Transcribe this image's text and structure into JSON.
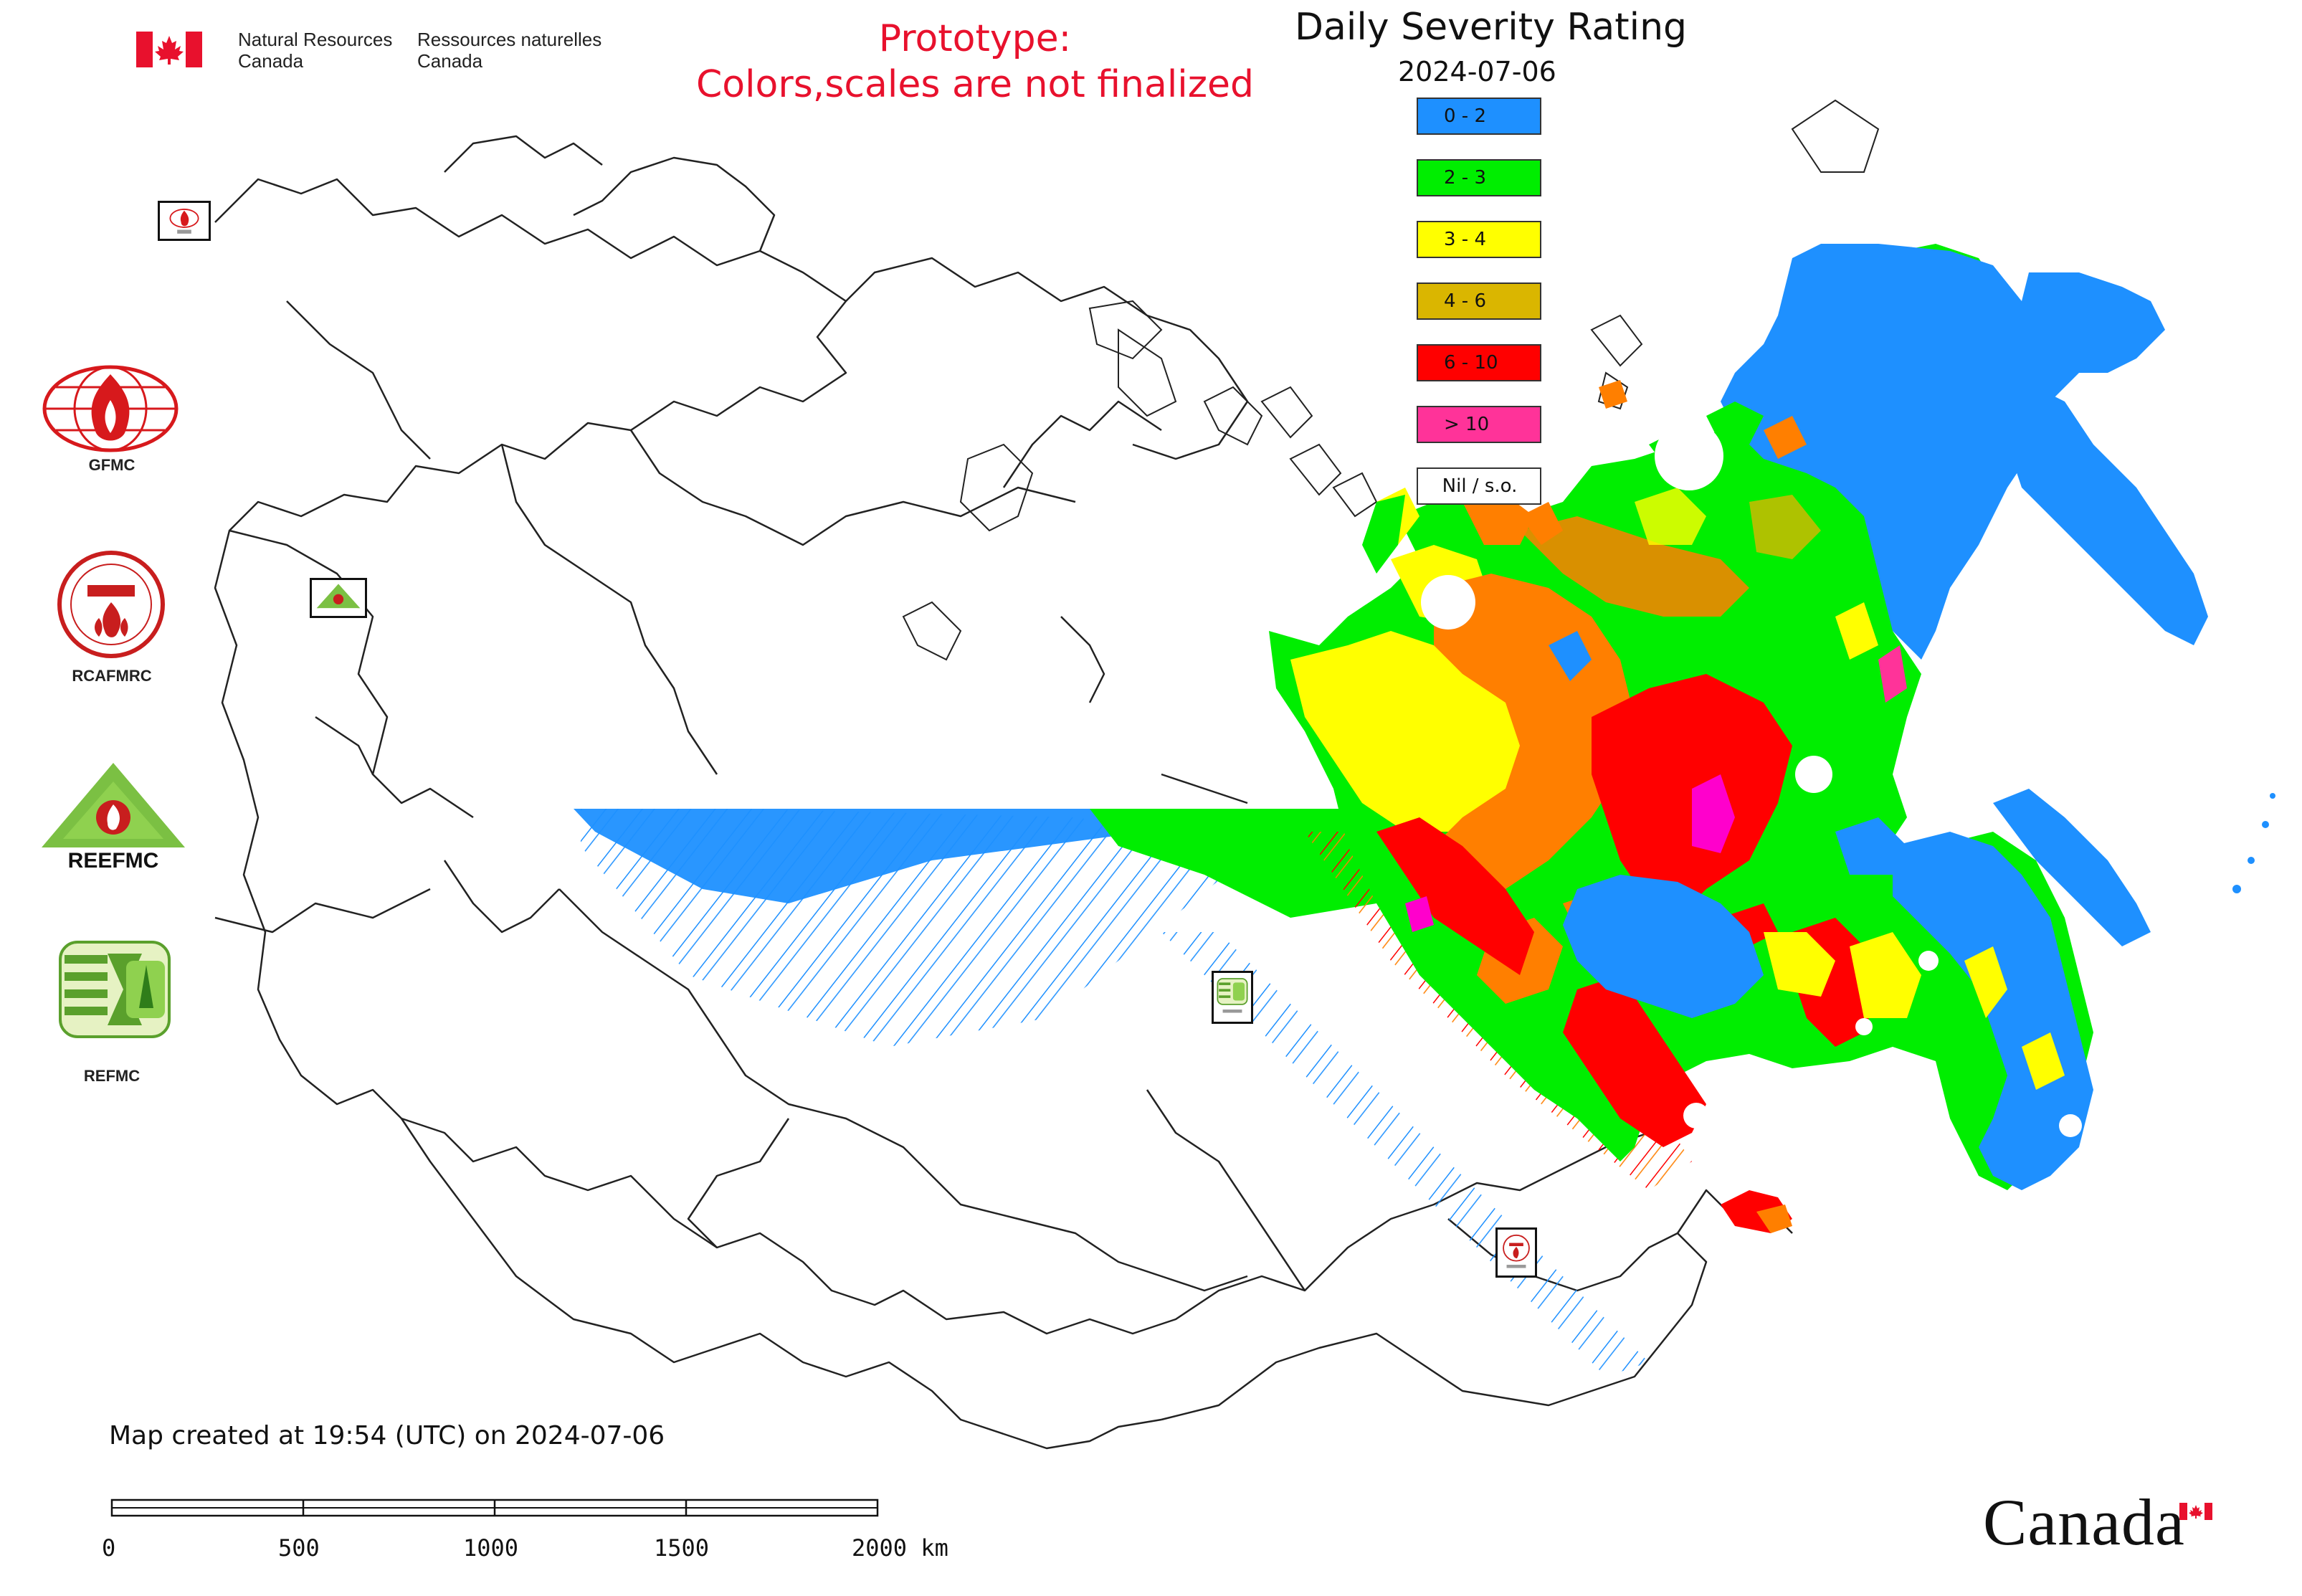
{
  "header": {
    "department_en": [
      "Natural Resources",
      "Canada"
    ],
    "department_fr": [
      "Ressources naturelles",
      "Canada"
    ],
    "prototype_notice": [
      "Prototype:",
      "Colors,scales are not finalized"
    ]
  },
  "map": {
    "title": "Daily Severity Rating",
    "date": "2024-07-06",
    "created": "Map created at 19:54 (UTC) on 2024-07-06"
  },
  "legend": [
    {
      "label": "0 - 2",
      "color": "#1e90ff"
    },
    {
      "label": "2 - 3",
      "color": "#00ee00"
    },
    {
      "label": "3 - 4",
      "color": "#ffff00"
    },
    {
      "label": "4 - 6",
      "color": "#dab600"
    },
    {
      "label": "6 - 10",
      "color": "#ff0000"
    },
    {
      "label": "> 10",
      "color": "#ff3399"
    },
    {
      "label": "Nil / s.o.",
      "color": "#ffffff"
    }
  ],
  "organizations": [
    {
      "label": "GFMC",
      "icon": "gfmc-logo-icon"
    },
    {
      "label": "RCAFMRC",
      "icon": "rcafmrc-logo-icon"
    },
    {
      "label": "",
      "icon": "reefmc-logo-icon",
      "wordmark": "REEFMC"
    },
    {
      "label": "REFMC",
      "icon": "refmc-logo-icon"
    }
  ],
  "scale_bar": {
    "ticks": [
      "0",
      "500",
      "1000",
      "1500",
      "2000 km"
    ]
  },
  "footer": {
    "wordmark": "Canada"
  },
  "colors": {
    "accent_red": "#e8112d",
    "outline": "#222222"
  }
}
